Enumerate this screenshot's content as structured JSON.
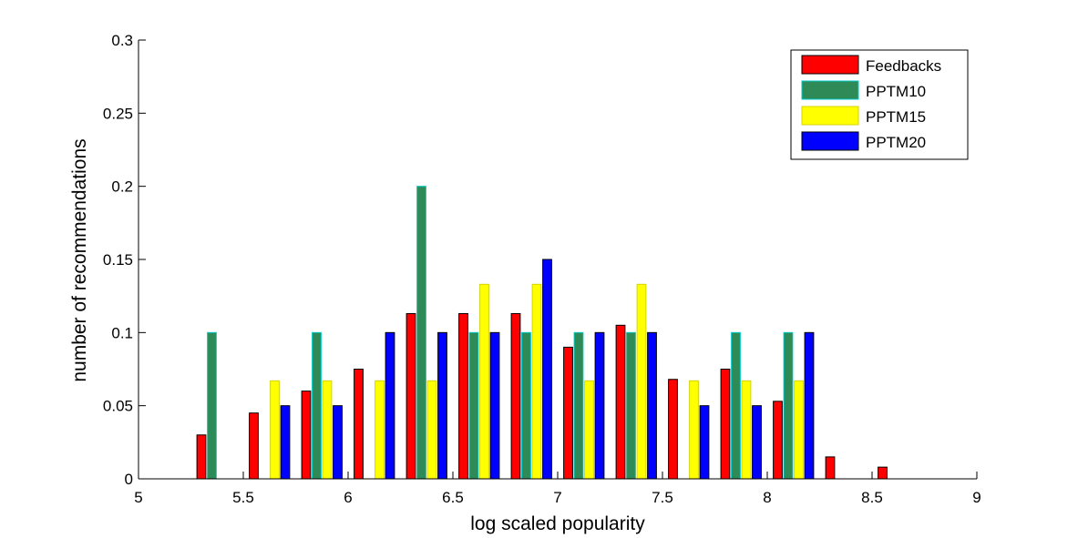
{
  "chart_data": {
    "type": "bar",
    "xlabel": "log scaled popularity",
    "ylabel": "number of recommendations",
    "xlim": [
      5,
      9
    ],
    "ylim": [
      0,
      0.3
    ],
    "xticks": [
      "5",
      "5.5",
      "6",
      "6.5",
      "7",
      "7.5",
      "8",
      "8.5",
      "9"
    ],
    "yticks": [
      "0",
      "0.05",
      "0.1",
      "0.15",
      "0.2",
      "0.25",
      "0.3"
    ],
    "legend_position": "top-right",
    "grid": false,
    "x": [
      5.125,
      5.375,
      5.625,
      5.875,
      6.125,
      6.375,
      6.625,
      6.875,
      7.125,
      7.375,
      7.625,
      7.875,
      8.125,
      8.375,
      8.625,
      8.875
    ],
    "series": [
      {
        "name": "Feedbacks",
        "color": "#ff0000",
        "edge": "#000000",
        "values": [
          0,
          0.03,
          0.045,
          0.06,
          0.075,
          0.113,
          0.113,
          0.113,
          0.09,
          0.105,
          0.068,
          0.075,
          0.053,
          0.015,
          0.008,
          0
        ]
      },
      {
        "name": "PPTM10",
        "color": "#2e8b57",
        "edge": "#00c8c8",
        "values": [
          0,
          0.1,
          0,
          0.1,
          0,
          0.2,
          0.1,
          0.1,
          0.1,
          0.1,
          0,
          0.1,
          0.1,
          0,
          0,
          0
        ]
      },
      {
        "name": "PPTM15",
        "color": "#ffff00",
        "edge": "#d4d400",
        "values": [
          0,
          0,
          0.067,
          0.067,
          0.067,
          0.067,
          0.133,
          0.133,
          0.067,
          0.133,
          0.067,
          0.067,
          0.067,
          0,
          0,
          0
        ]
      },
      {
        "name": "PPTM20",
        "color": "#0000ff",
        "edge": "#000000",
        "values": [
          0,
          0,
          0.05,
          0.05,
          0.1,
          0.1,
          0.1,
          0.15,
          0.1,
          0.1,
          0.05,
          0.05,
          0.1,
          0,
          0,
          0
        ]
      }
    ]
  }
}
